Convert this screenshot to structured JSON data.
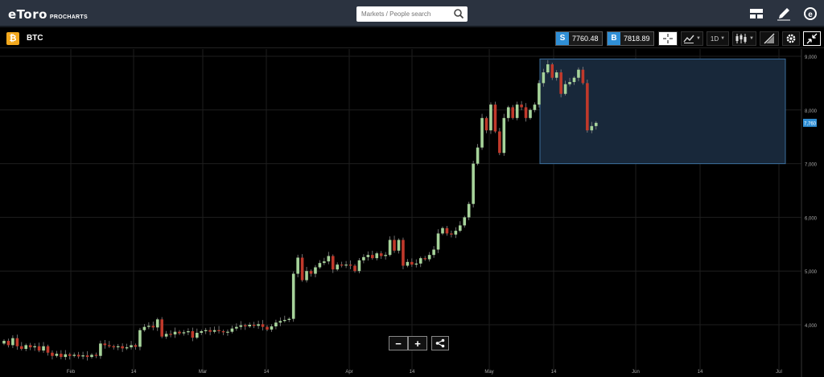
{
  "header": {
    "logo_text": "eToro",
    "logo_sub": "PROCHARTS",
    "search_placeholder": "Markets / People search",
    "icons": [
      "layout-icon",
      "pencil-icon",
      "etoro-return-icon"
    ]
  },
  "instrument": {
    "name": "BTC",
    "icon": "bitcoin-icon",
    "sell_tag": "S",
    "sell_price": "7760.48",
    "buy_tag": "B",
    "buy_price": "7818.89",
    "timeframe": "1D",
    "tools": [
      "crosshair-icon",
      "chart-type-icon",
      "timeframe-select",
      "candles-icon",
      "drawing-tool-icon",
      "settings-icon",
      "fullscreen-icon"
    ]
  },
  "colors": {
    "bullish": "#a6d39a",
    "bearish": "#c0392b",
    "selection_fill": "#18283a",
    "selection_stroke": "#3d6e9c",
    "price_tag": "#2f8fd6"
  },
  "chart_data": {
    "type": "candlestick",
    "title": "",
    "y_ticks": [
      "9,000",
      "8,000",
      "7,000",
      "6,000",
      "5,000",
      "4,000"
    ],
    "x_ticks": [
      "Feb",
      "14",
      "Mar",
      "14",
      "Apr",
      "14",
      "May",
      "14",
      "Jun",
      "14",
      "Jul"
    ],
    "current_price_label": "7,760",
    "ylim": [
      3300,
      9100
    ],
    "candles": [
      [
        3650,
        3700
      ],
      [
        3700,
        3620
      ],
      [
        3620,
        3750
      ],
      [
        3750,
        3600
      ],
      [
        3600,
        3550
      ],
      [
        3550,
        3620
      ],
      [
        3620,
        3580
      ],
      [
        3580,
        3600
      ],
      [
        3600,
        3520
      ],
      [
        3520,
        3600
      ],
      [
        3600,
        3480
      ],
      [
        3480,
        3420
      ],
      [
        3420,
        3460
      ],
      [
        3460,
        3400
      ],
      [
        3400,
        3450
      ],
      [
        3450,
        3420
      ],
      [
        3420,
        3440
      ],
      [
        3440,
        3410
      ],
      [
        3410,
        3430
      ],
      [
        3430,
        3400
      ],
      [
        3400,
        3440
      ],
      [
        3440,
        3420
      ],
      [
        3420,
        3650
      ],
      [
        3650,
        3620
      ],
      [
        3620,
        3600
      ],
      [
        3600,
        3580
      ],
      [
        3580,
        3600
      ],
      [
        3600,
        3560
      ],
      [
        3560,
        3580
      ],
      [
        3580,
        3620
      ],
      [
        3620,
        3590
      ],
      [
        3590,
        3900
      ],
      [
        3900,
        3960
      ],
      [
        3960,
        3980
      ],
      [
        3980,
        3950
      ],
      [
        3950,
        4100
      ],
      [
        4100,
        3780
      ],
      [
        3780,
        3830
      ],
      [
        3830,
        3820
      ],
      [
        3820,
        3870
      ],
      [
        3870,
        3840
      ],
      [
        3840,
        3860
      ],
      [
        3860,
        3880
      ],
      [
        3880,
        3760
      ],
      [
        3760,
        3850
      ],
      [
        3850,
        3880
      ],
      [
        3880,
        3900
      ],
      [
        3900,
        3870
      ],
      [
        3870,
        3900
      ],
      [
        3900,
        3880
      ],
      [
        3880,
        3860
      ],
      [
        3860,
        3870
      ],
      [
        3870,
        3930
      ],
      [
        3930,
        3960
      ],
      [
        3960,
        3990
      ],
      [
        3990,
        3970
      ],
      [
        3970,
        4000
      ],
      [
        4000,
        3980
      ],
      [
        3980,
        4010
      ],
      [
        4010,
        3960
      ],
      [
        3960,
        3910
      ],
      [
        3910,
        3970
      ],
      [
        3970,
        4040
      ],
      [
        4040,
        4070
      ],
      [
        4070,
        4090
      ],
      [
        4090,
        4110
      ],
      [
        4110,
        4950
      ],
      [
        4950,
        5250
      ],
      [
        5250,
        4830
      ],
      [
        4830,
        5000
      ],
      [
        5000,
        4950
      ],
      [
        4950,
        5070
      ],
      [
        5070,
        5150
      ],
      [
        5150,
        5180
      ],
      [
        5180,
        5280
      ],
      [
        5280,
        5030
      ],
      [
        5030,
        5120
      ],
      [
        5120,
        5110
      ],
      [
        5110,
        5120
      ],
      [
        5120,
        5100
      ],
      [
        5100,
        5000
      ],
      [
        5000,
        5200
      ],
      [
        5200,
        5260
      ],
      [
        5260,
        5300
      ],
      [
        5300,
        5240
      ],
      [
        5240,
        5330
      ],
      [
        5330,
        5280
      ],
      [
        5280,
        5300
      ],
      [
        5300,
        5580
      ],
      [
        5580,
        5380
      ],
      [
        5380,
        5580
      ],
      [
        5580,
        5100
      ],
      [
        5100,
        5170
      ],
      [
        5170,
        5120
      ],
      [
        5120,
        5140
      ],
      [
        5140,
        5240
      ],
      [
        5240,
        5220
      ],
      [
        5220,
        5300
      ],
      [
        5300,
        5400
      ],
      [
        5400,
        5700
      ],
      [
        5700,
        5800
      ],
      [
        5800,
        5700
      ],
      [
        5700,
        5680
      ],
      [
        5680,
        5750
      ],
      [
        5750,
        5850
      ],
      [
        5850,
        6000
      ],
      [
        6000,
        6250
      ],
      [
        6250,
        7000
      ],
      [
        7000,
        7300
      ],
      [
        7300,
        7850
      ],
      [
        7850,
        7620
      ],
      [
        7620,
        8100
      ],
      [
        8100,
        7600
      ],
      [
        7600,
        7200
      ],
      [
        7200,
        7850
      ],
      [
        7850,
        8050
      ],
      [
        8050,
        7850
      ],
      [
        7850,
        8100
      ],
      [
        8100,
        8050
      ],
      [
        8050,
        7850
      ],
      [
        7850,
        8000
      ],
      [
        8000,
        8100
      ],
      [
        8100,
        8500
      ],
      [
        8500,
        8700
      ],
      [
        8700,
        8850
      ],
      [
        8850,
        8600
      ],
      [
        8600,
        8700
      ],
      [
        8700,
        8300
      ],
      [
        8300,
        8480
      ],
      [
        8480,
        8520
      ],
      [
        8520,
        8600
      ],
      [
        8600,
        8750
      ],
      [
        8750,
        8500
      ],
      [
        8500,
        7620
      ],
      [
        7620,
        7700
      ],
      [
        7700,
        7760
      ]
    ],
    "selection_range": {
      "x_start_index": 107,
      "x_end_index": 155,
      "price_low": 7000,
      "price_high": 8950
    }
  },
  "zoom_controls": {
    "zoom_out_label": "−",
    "zoom_in_label": "+",
    "share_icon": "share-icon"
  }
}
